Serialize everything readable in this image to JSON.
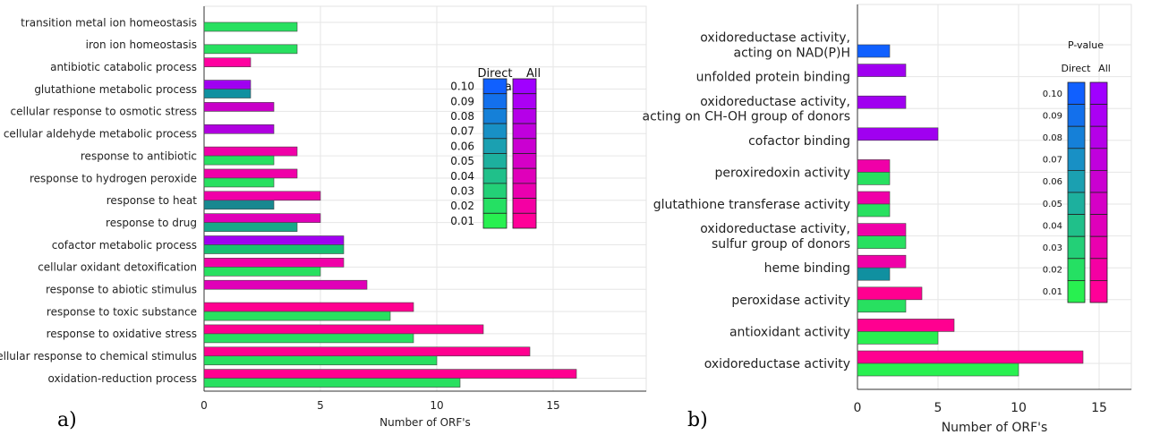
{
  "chart_data": [
    {
      "type": "bar",
      "panel_label": "a)",
      "xlabel": "Number of ORF's",
      "xlim": [
        0,
        19
      ],
      "xticks": [
        0,
        5,
        10,
        15
      ],
      "grid": true,
      "categories": [
        "transition metal ion homeostasis",
        "iron ion homeostasis",
        "antibiotic catabolic process",
        "glutathione metabolic process",
        "cellular response to osmotic stress",
        "cellular aldehyde metabolic process",
        "response to antibiotic",
        "response to hydrogen peroxide",
        "response to heat",
        "response to drug",
        "cofactor metabolic process",
        "cellular oxidant detoxification",
        "response to abiotic stimulus",
        "response to toxic substance",
        "response to oxidative stress",
        "cellular response to chemical stimulus",
        "oxidation-reduction process"
      ],
      "series": [
        {
          "name": "All",
          "values": [
            null,
            null,
            2,
            2,
            3,
            3,
            4,
            4,
            5,
            5,
            6,
            6,
            7,
            9,
            12,
            14,
            16
          ],
          "colors": [
            null,
            null,
            "#ff00a0",
            "#a000f0",
            "#c800c8",
            "#b000e0",
            "#f000a8",
            "#f000a8",
            "#f000a8",
            "#e000b8",
            "#a000f0",
            "#f000a8",
            "#e000b8",
            "#ff0090",
            "#ff0090",
            "#ff0090",
            "#ff0090"
          ]
        },
        {
          "name": "Direct",
          "values": [
            4,
            4,
            null,
            2,
            null,
            null,
            3,
            3,
            3,
            4,
            6,
            5,
            null,
            8,
            9,
            10,
            11
          ],
          "colors": [
            "#28e060",
            "#28e060",
            null,
            "#1090a0",
            null,
            null,
            "#28e060",
            "#28e060",
            "#188890",
            "#18a888",
            "#18c070",
            "#28e060",
            null,
            "#28e060",
            "#28e060",
            "#28e060",
            "#28e060"
          ]
        }
      ],
      "legend": {
        "title": "P-value",
        "columns": [
          "Direct",
          "All"
        ],
        "levels": [
          "0.10",
          "0.09",
          "0.08",
          "0.07",
          "0.06",
          "0.05",
          "0.04",
          "0.03",
          "0.02",
          "0.01"
        ],
        "direct_colors": [
          "#1060ff",
          "#1070e0",
          "#1080c0",
          "#1090a8",
          "#10a0a0",
          "#10b090",
          "#10c080",
          "#20d070",
          "#20e060",
          "#28f050"
        ],
        "all_colors": [
          "#a000ff",
          "#a800f0",
          "#b000e8",
          "#b800e0",
          "#c000d8",
          "#c800d0",
          "#d000c8",
          "#e000b8",
          "#f000a8",
          "#ff0098"
        ]
      }
    },
    {
      "type": "bar",
      "panel_label": "b)",
      "xlabel": "Number of ORF's",
      "xlim": [
        0,
        17
      ],
      "xticks": [
        0,
        5,
        10,
        15
      ],
      "grid": true,
      "categories": [
        [
          "oxidoreductase activity,",
          "acting on NAD(P)H"
        ],
        [
          "unfolded protein binding"
        ],
        [
          "oxidoreductase activity,",
          "acting on CH-OH group of donors"
        ],
        [
          "cofactor binding"
        ],
        [
          "peroxiredoxin activity"
        ],
        [
          "glutathione transferase activity"
        ],
        [
          "oxidoreductase activity,",
          "sulfur group of donors"
        ],
        [
          "heme binding"
        ],
        [
          "peroxidase activity"
        ],
        [
          "antioxidant activity"
        ],
        [
          "oxidoreductase activity"
        ]
      ],
      "series": [
        {
          "name": "All",
          "values": [
            null,
            3,
            3,
            5,
            2,
            2,
            3,
            3,
            4,
            6,
            14
          ],
          "colors": [
            null,
            "#a000f0",
            "#a000f0",
            "#a000f0",
            "#f000a8",
            "#f000a8",
            "#f000a8",
            "#f000a8",
            "#ff0090",
            "#ff0090",
            "#ff0090"
          ]
        },
        {
          "name": "Direct",
          "values": [
            2,
            null,
            null,
            null,
            2,
            2,
            3,
            2,
            3,
            5,
            10
          ],
          "colors": [
            "#1060ff",
            null,
            null,
            null,
            "#28e060",
            "#28e060",
            "#28e060",
            "#1090a0",
            "#28e060",
            "#28f050",
            "#28f050"
          ]
        }
      ],
      "legend": {
        "title": "P-value",
        "columns": [
          "Direct",
          "All"
        ],
        "levels": [
          "0.10",
          "0.09",
          "0.08",
          "0.07",
          "0.06",
          "0.05",
          "0.04",
          "0.03",
          "0.02",
          "0.01"
        ]
      }
    }
  ]
}
